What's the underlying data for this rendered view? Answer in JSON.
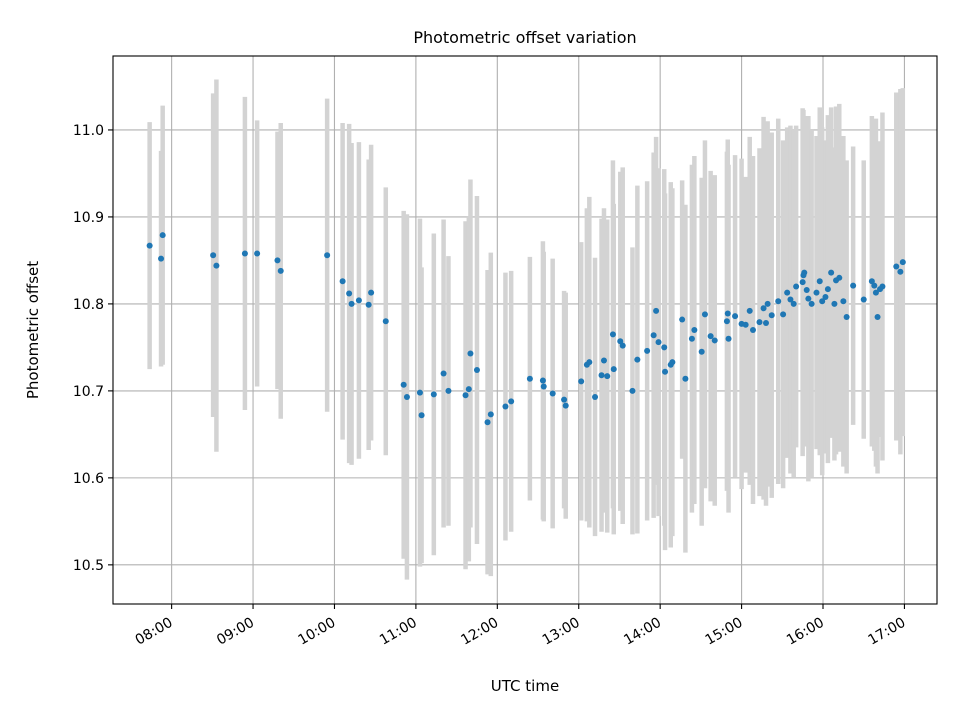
{
  "chart_data": {
    "type": "scatter",
    "title": "Photometric offset variation",
    "xlabel": "UTC time",
    "ylabel": "Photometric offset",
    "xlim": [
      7.28,
      17.4
    ],
    "ylim": [
      10.455,
      11.085
    ],
    "grid": true,
    "x_ticks": [
      {
        "value": 8,
        "label": "08:00"
      },
      {
        "value": 9,
        "label": "09:00"
      },
      {
        "value": 10,
        "label": "10:00"
      },
      {
        "value": 11,
        "label": "11:00"
      },
      {
        "value": 12,
        "label": "12:00"
      },
      {
        "value": 13,
        "label": "13:00"
      },
      {
        "value": 14,
        "label": "14:00"
      },
      {
        "value": 15,
        "label": "15:00"
      },
      {
        "value": 16,
        "label": "16:00"
      },
      {
        "value": 17,
        "label": "17:00"
      }
    ],
    "y_ticks": [
      {
        "value": 10.5,
        "label": "10.5"
      },
      {
        "value": 10.6,
        "label": "10.6"
      },
      {
        "value": 10.7,
        "label": "10.7"
      },
      {
        "value": 10.8,
        "label": "10.8"
      },
      {
        "value": 10.9,
        "label": "10.9"
      },
      {
        "value": 11.0,
        "label": "11.0"
      }
    ],
    "point_color": "#1f77b4",
    "errorbar_color": "#d3d3d3",
    "series": [
      {
        "name": "offset",
        "points": [
          [
            7.73,
            10.867,
            0.142
          ],
          [
            7.87,
            10.852,
            0.124
          ],
          [
            7.89,
            10.879,
            0.149
          ],
          [
            8.51,
            10.856,
            0.186
          ],
          [
            8.55,
            10.844,
            0.214
          ],
          [
            8.9,
            10.858,
            0.18
          ],
          [
            9.05,
            10.858,
            0.153
          ],
          [
            9.3,
            10.85,
            0.148
          ],
          [
            9.34,
            10.838,
            0.17
          ],
          [
            9.91,
            10.856,
            0.18
          ],
          [
            10.1,
            10.826,
            0.182
          ],
          [
            10.18,
            10.812,
            0.195
          ],
          [
            10.21,
            10.8,
            0.185
          ],
          [
            10.3,
            10.804,
            0.182
          ],
          [
            10.42,
            10.799,
            0.167
          ],
          [
            10.45,
            10.813,
            0.17
          ],
          [
            10.63,
            10.78,
            0.154
          ],
          [
            10.85,
            10.707,
            0.2
          ],
          [
            10.89,
            10.693,
            0.21
          ],
          [
            11.05,
            10.698,
            0.2
          ],
          [
            11.07,
            10.672,
            0.17
          ],
          [
            11.22,
            10.696,
            0.185
          ],
          [
            11.34,
            10.72,
            0.177
          ],
          [
            11.4,
            10.7,
            0.155
          ],
          [
            11.61,
            10.695,
            0.2
          ],
          [
            11.65,
            10.702,
            0.198
          ],
          [
            11.67,
            10.743,
            0.2
          ],
          [
            11.75,
            10.724,
            0.2
          ],
          [
            11.88,
            10.664,
            0.175
          ],
          [
            11.92,
            10.673,
            0.186
          ],
          [
            12.1,
            10.682,
            0.154
          ],
          [
            12.17,
            10.688,
            0.15
          ],
          [
            12.4,
            10.714,
            0.14
          ],
          [
            12.56,
            10.712,
            0.16
          ],
          [
            12.57,
            10.705,
            0.155
          ],
          [
            12.68,
            10.697,
            0.155
          ],
          [
            12.82,
            10.69,
            0.125
          ],
          [
            12.84,
            10.683,
            0.13
          ],
          [
            13.03,
            10.711,
            0.16
          ],
          [
            13.1,
            10.73,
            0.18
          ],
          [
            13.13,
            10.733,
            0.19
          ],
          [
            13.2,
            10.693,
            0.16
          ],
          [
            13.28,
            10.718,
            0.18
          ],
          [
            13.31,
            10.735,
            0.175
          ],
          [
            13.35,
            10.717,
            0.18
          ],
          [
            13.42,
            10.765,
            0.2
          ],
          [
            13.43,
            10.725,
            0.19
          ],
          [
            13.51,
            10.757,
            0.195
          ],
          [
            13.54,
            10.752,
            0.205
          ],
          [
            13.66,
            10.7,
            0.165
          ],
          [
            13.72,
            10.736,
            0.2
          ],
          [
            13.84,
            10.746,
            0.195
          ],
          [
            13.92,
            10.764,
            0.21
          ],
          [
            13.95,
            10.792,
            0.2
          ],
          [
            13.98,
            10.756,
            0.2
          ],
          [
            14.05,
            10.75,
            0.205
          ],
          [
            14.06,
            10.722,
            0.205
          ],
          [
            14.13,
            10.73,
            0.21
          ],
          [
            14.15,
            10.733,
            0.2
          ],
          [
            14.27,
            10.782,
            0.16
          ],
          [
            14.31,
            10.714,
            0.2
          ],
          [
            14.39,
            10.76,
            0.2
          ],
          [
            14.42,
            10.77,
            0.2
          ],
          [
            14.51,
            10.745,
            0.2
          ],
          [
            14.55,
            10.788,
            0.2
          ],
          [
            14.62,
            10.763,
            0.19
          ],
          [
            14.67,
            10.758,
            0.19
          ],
          [
            14.82,
            10.78,
            0.195
          ],
          [
            14.83,
            10.789,
            0.2
          ],
          [
            14.84,
            10.76,
            0.2
          ],
          [
            14.92,
            10.786,
            0.185
          ],
          [
            15.0,
            10.777,
            0.19
          ],
          [
            15.05,
            10.776,
            0.17
          ],
          [
            15.1,
            10.792,
            0.2
          ],
          [
            15.14,
            10.77,
            0.2
          ],
          [
            15.22,
            10.779,
            0.2
          ],
          [
            15.27,
            10.795,
            0.22
          ],
          [
            15.3,
            10.778,
            0.21
          ],
          [
            15.32,
            10.8,
            0.21
          ],
          [
            15.37,
            10.787,
            0.21
          ],
          [
            15.45,
            10.803,
            0.21
          ],
          [
            15.51,
            10.788,
            0.2
          ],
          [
            15.56,
            10.813,
            0.19
          ],
          [
            15.6,
            10.805,
            0.2
          ],
          [
            15.64,
            10.8,
            0.2
          ],
          [
            15.67,
            10.82,
            0.185
          ],
          [
            15.75,
            10.825,
            0.2
          ],
          [
            15.76,
            10.833,
            0.19
          ],
          [
            15.77,
            10.836,
            0.18
          ],
          [
            15.8,
            10.816,
            0.18
          ],
          [
            15.82,
            10.806,
            0.21
          ],
          [
            15.86,
            10.8,
            0.2
          ],
          [
            15.92,
            10.813,
            0.18
          ],
          [
            15.96,
            10.826,
            0.2
          ],
          [
            15.99,
            10.803,
            0.2
          ],
          [
            16.03,
            10.808,
            0.18
          ],
          [
            16.06,
            10.817,
            0.2
          ],
          [
            16.1,
            10.836,
            0.19
          ],
          [
            16.14,
            10.8,
            0.18
          ],
          [
            16.16,
            10.827,
            0.2
          ],
          [
            16.2,
            10.83,
            0.2
          ],
          [
            16.25,
            10.803,
            0.19
          ],
          [
            16.29,
            10.785,
            0.18
          ],
          [
            16.37,
            10.821,
            0.16
          ],
          [
            16.5,
            10.805,
            0.16
          ],
          [
            16.6,
            10.826,
            0.19
          ],
          [
            16.63,
            10.821,
            0.19
          ],
          [
            16.65,
            10.813,
            0.2
          ],
          [
            16.67,
            10.785,
            0.18
          ],
          [
            16.7,
            10.817,
            0.17
          ],
          [
            16.73,
            10.82,
            0.2
          ],
          [
            16.9,
            10.843,
            0.2
          ],
          [
            16.95,
            10.837,
            0.21
          ],
          [
            16.98,
            10.848,
            0.2
          ]
        ]
      }
    ]
  }
}
